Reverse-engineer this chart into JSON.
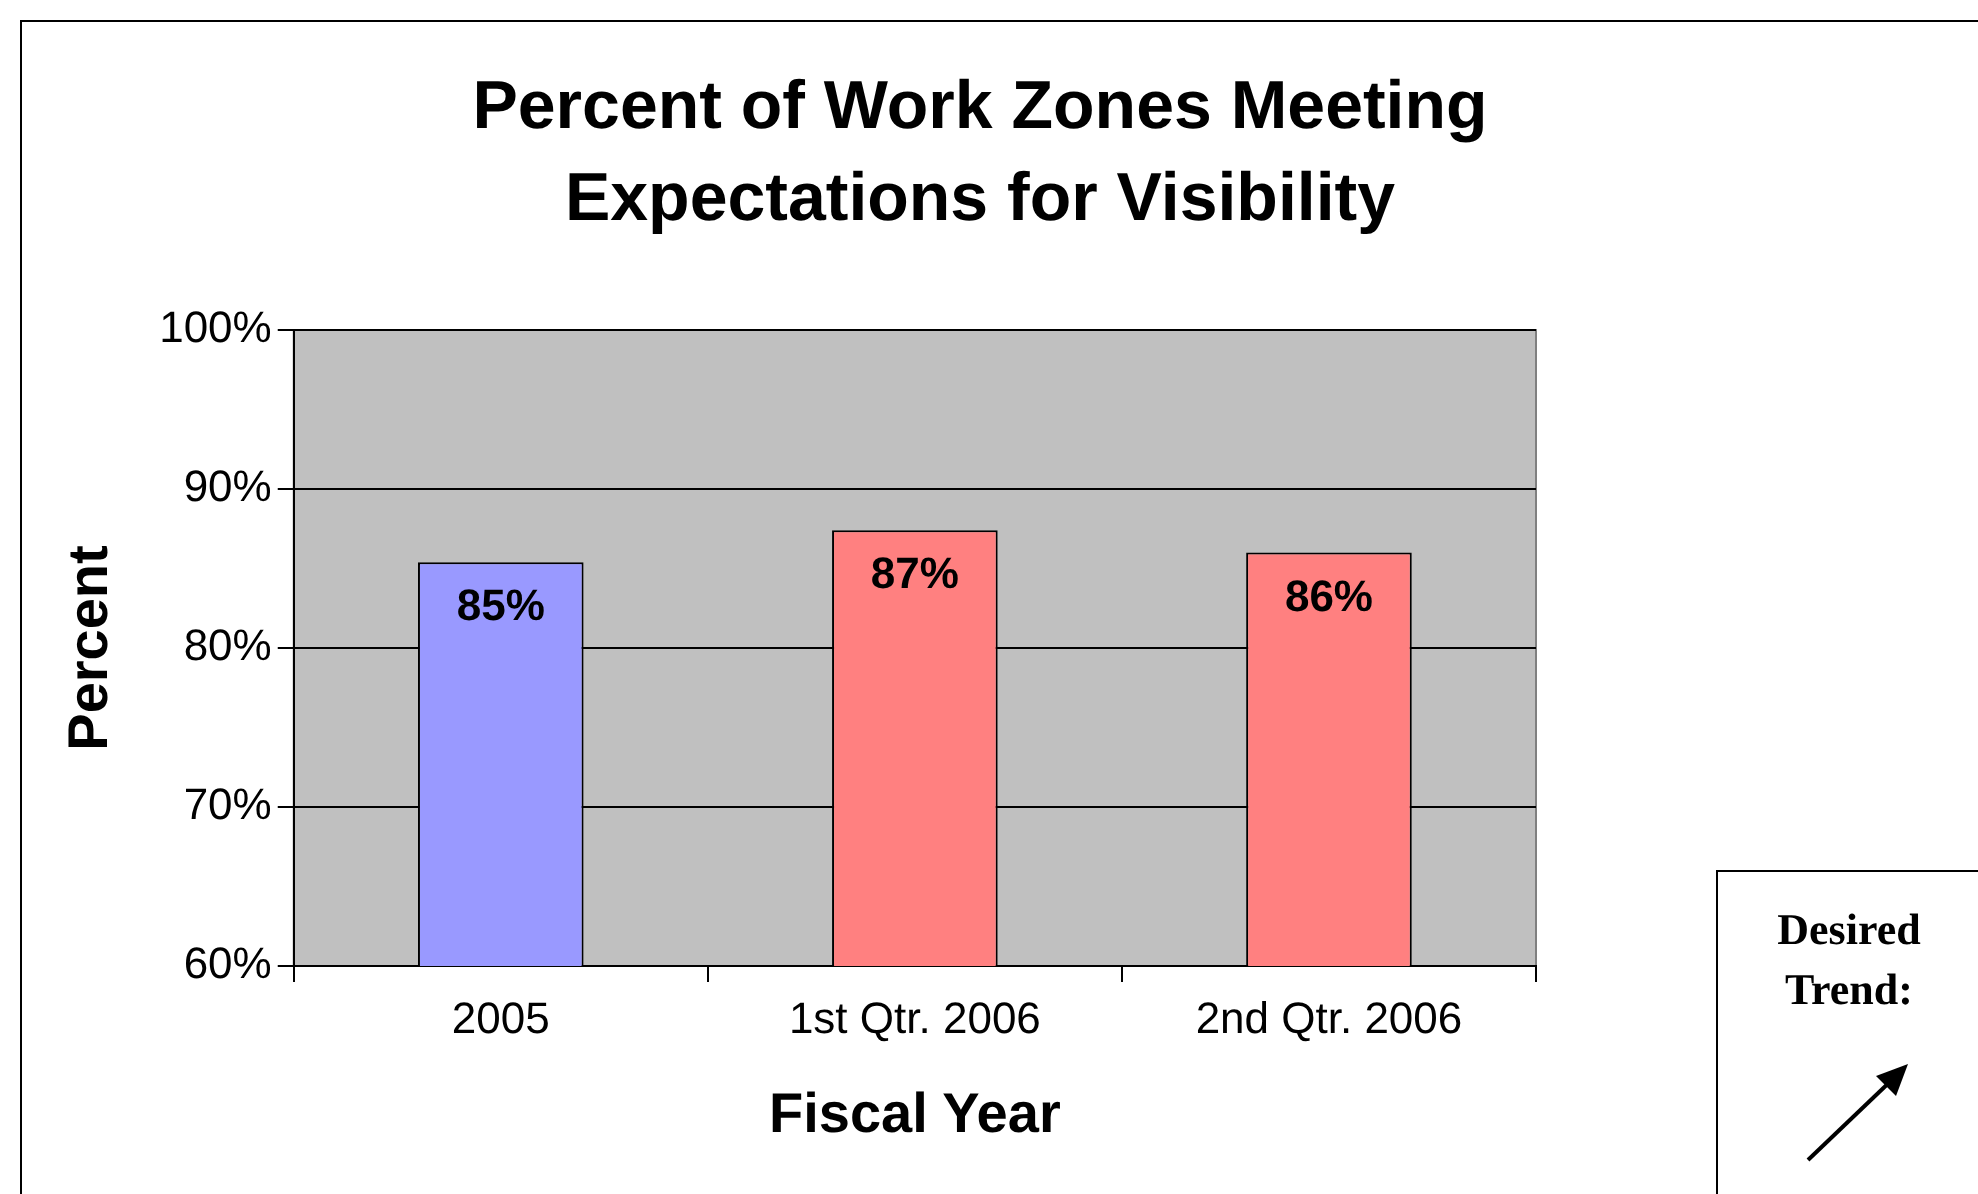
{
  "chart_data": {
    "type": "bar",
    "title": "Percent of Work Zones Meeting Expectations for Visibility",
    "xlabel": "Fiscal Year",
    "ylabel": "Percent",
    "categories": [
      "2005",
      "1st Qtr. 2006",
      "2nd Qtr. 2006"
    ],
    "values": [
      85.4,
      87.4,
      86
    ],
    "value_labels": [
      "85%",
      "87%",
      "86%"
    ],
    "colors": [
      "#9999ff",
      "#ff8080",
      "#ff8080"
    ],
    "ylim": [
      60,
      100
    ],
    "yticks": [
      {
        "value": 60,
        "label": "60%"
      },
      {
        "value": 70,
        "label": "70%"
      },
      {
        "value": 80,
        "label": "80%"
      },
      {
        "value": 90,
        "label": "90%"
      },
      {
        "value": 100,
        "label": "100%"
      }
    ],
    "grid": "y",
    "legend": false,
    "annotations": [
      "Desired Trend:"
    ]
  }
}
